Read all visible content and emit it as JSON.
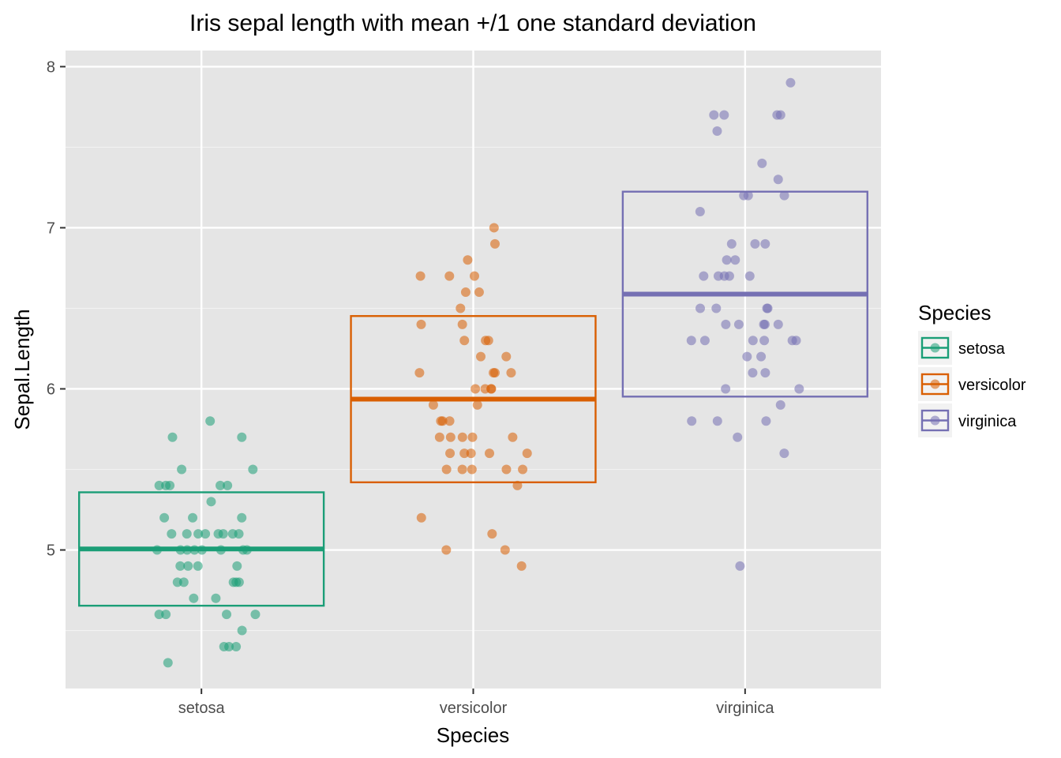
{
  "chart_data": {
    "type": "scatter",
    "title": "Iris sepal length with mean +/1 one standard deviation",
    "xlabel": "Species",
    "ylabel": "Sepal.Length",
    "categories": [
      "setosa",
      "versicolor",
      "virginica"
    ],
    "ylim": [
      4.14,
      8.1
    ],
    "yticks": [
      5,
      6,
      7,
      8
    ],
    "grid": true,
    "legend_title": "Species",
    "legend_placement": "right",
    "colors": {
      "setosa": "#1b9e77",
      "versicolor": "#d95f02",
      "virginica": "#7570b3"
    },
    "summary": [
      {
        "category": "setosa",
        "mean": 5.006,
        "lower": 4.654,
        "upper": 5.358
      },
      {
        "category": "versicolor",
        "mean": 5.936,
        "lower": 5.42,
        "upper": 6.452
      },
      {
        "category": "virginica",
        "mean": 6.588,
        "lower": 5.952,
        "upper": 7.224
      }
    ],
    "series": [
      {
        "name": "setosa",
        "values": [
          5.1,
          4.9,
          4.7,
          4.6,
          5.0,
          5.4,
          4.6,
          5.0,
          4.4,
          4.9,
          5.4,
          4.8,
          4.8,
          4.3,
          5.8,
          5.7,
          5.4,
          5.1,
          5.7,
          5.1,
          5.4,
          5.1,
          4.6,
          5.1,
          4.8,
          5.0,
          5.0,
          5.2,
          5.2,
          4.7,
          4.8,
          5.4,
          5.2,
          5.5,
          4.9,
          5.0,
          5.5,
          4.9,
          4.4,
          5.1,
          5.0,
          4.5,
          4.4,
          5.0,
          5.1,
          4.8,
          5.1,
          4.6,
          5.3,
          5.0
        ]
      },
      {
        "name": "versicolor",
        "values": [
          7.0,
          6.4,
          6.9,
          5.5,
          6.5,
          5.7,
          6.3,
          4.9,
          6.6,
          5.2,
          5.0,
          5.9,
          6.0,
          6.1,
          5.6,
          6.7,
          5.6,
          5.8,
          6.2,
          5.6,
          5.9,
          6.1,
          6.3,
          6.1,
          6.4,
          6.6,
          6.8,
          6.7,
          6.0,
          5.7,
          5.5,
          5.5,
          5.8,
          6.0,
          5.4,
          6.0,
          6.7,
          6.3,
          5.6,
          5.5,
          5.5,
          6.1,
          5.8,
          5.0,
          5.6,
          5.7,
          5.7,
          6.2,
          5.1,
          5.7
        ]
      },
      {
        "name": "virginica",
        "values": [
          6.3,
          5.8,
          7.1,
          6.3,
          6.5,
          7.6,
          4.9,
          7.3,
          6.7,
          7.2,
          6.5,
          6.4,
          6.8,
          5.7,
          5.8,
          6.4,
          6.5,
          7.7,
          7.7,
          6.0,
          6.9,
          5.6,
          7.7,
          6.3,
          6.7,
          7.2,
          6.2,
          6.1,
          6.4,
          7.2,
          7.4,
          7.9,
          6.4,
          6.3,
          6.1,
          7.7,
          6.3,
          6.4,
          6.0,
          6.9,
          6.7,
          6.9,
          5.8,
          6.8,
          6.7,
          6.7,
          6.3,
          6.5,
          6.2,
          5.9
        ]
      }
    ]
  }
}
